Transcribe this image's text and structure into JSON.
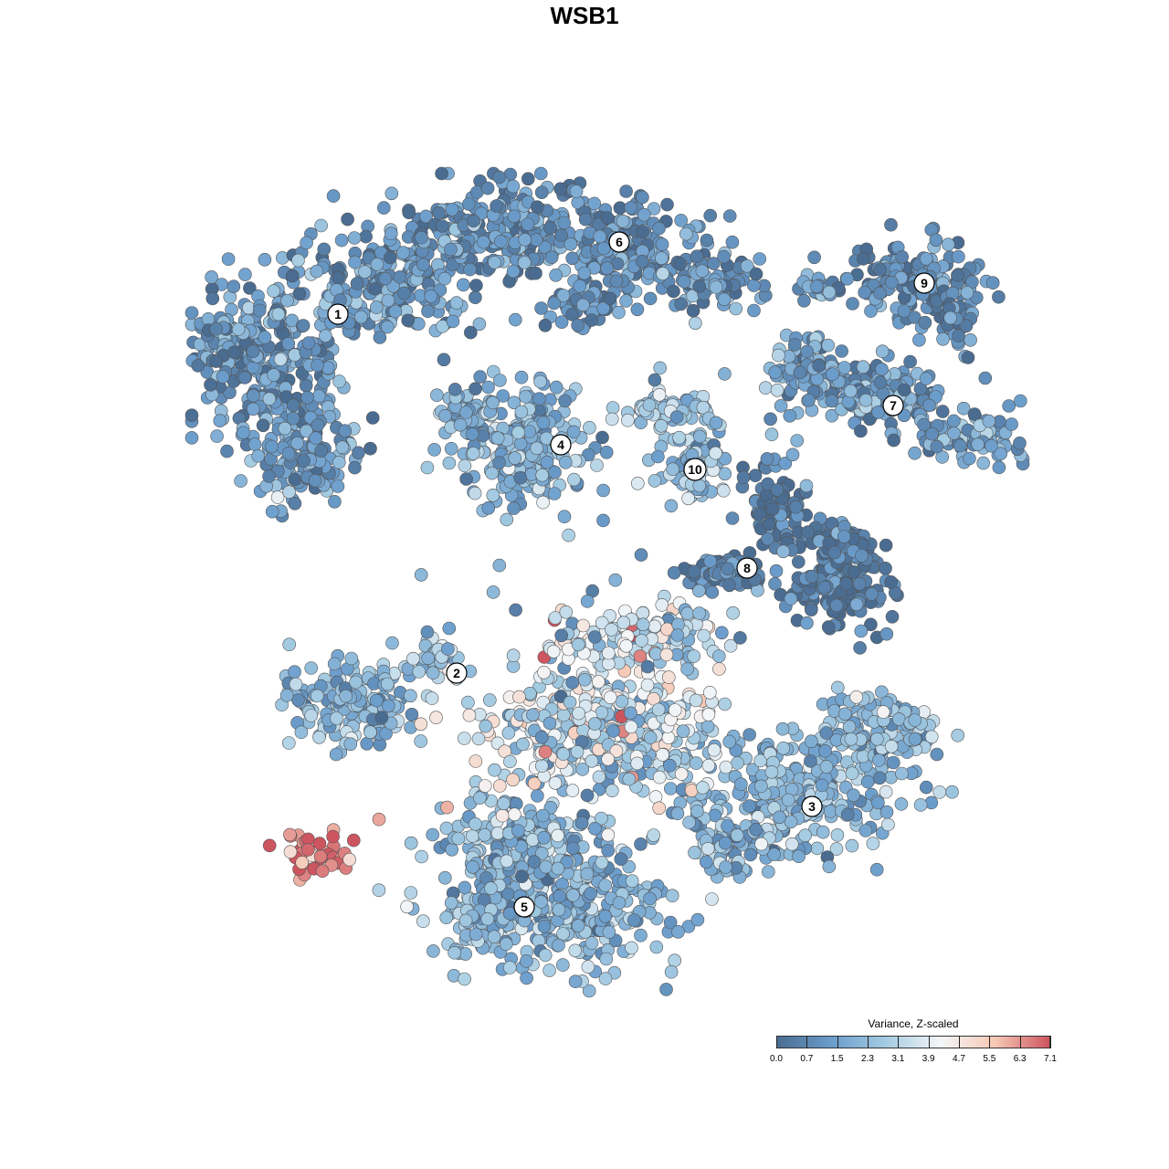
{
  "title": "WSB1",
  "legend": {
    "title": "Variance, Z-scaled",
    "ticks": [
      "0.0",
      "0.7",
      "1.5",
      "2.3",
      "3.1",
      "3.9",
      "4.7",
      "5.5",
      "6.3",
      "7.1"
    ],
    "min": 0.0,
    "max": 7.1,
    "colors": [
      "#4a6c91",
      "#6b9dcc",
      "#a4cbe2",
      "#f4f6f8",
      "#f6c9b5",
      "#cd5560"
    ]
  },
  "chart_data": {
    "type": "scatter",
    "title": "WSB1",
    "color_label": "Variance, Z-scaled",
    "color_range": [
      0.0,
      7.1
    ],
    "clusters": [
      {
        "label": "1",
        "mean_value": 1.3
      },
      {
        "label": "2",
        "mean_value": 2.4
      },
      {
        "label": "3",
        "mean_value": 2.2
      },
      {
        "label": "4",
        "mean_value": 2.0
      },
      {
        "label": "5",
        "mean_value": 2.1
      },
      {
        "label": "6",
        "mean_value": 1.0
      },
      {
        "label": "7",
        "mean_value": 1.6
      },
      {
        "label": "8",
        "mean_value": 0.4
      },
      {
        "label": "9",
        "mean_value": 1.0
      },
      {
        "label": "10",
        "mean_value": 2.6
      }
    ]
  }
}
